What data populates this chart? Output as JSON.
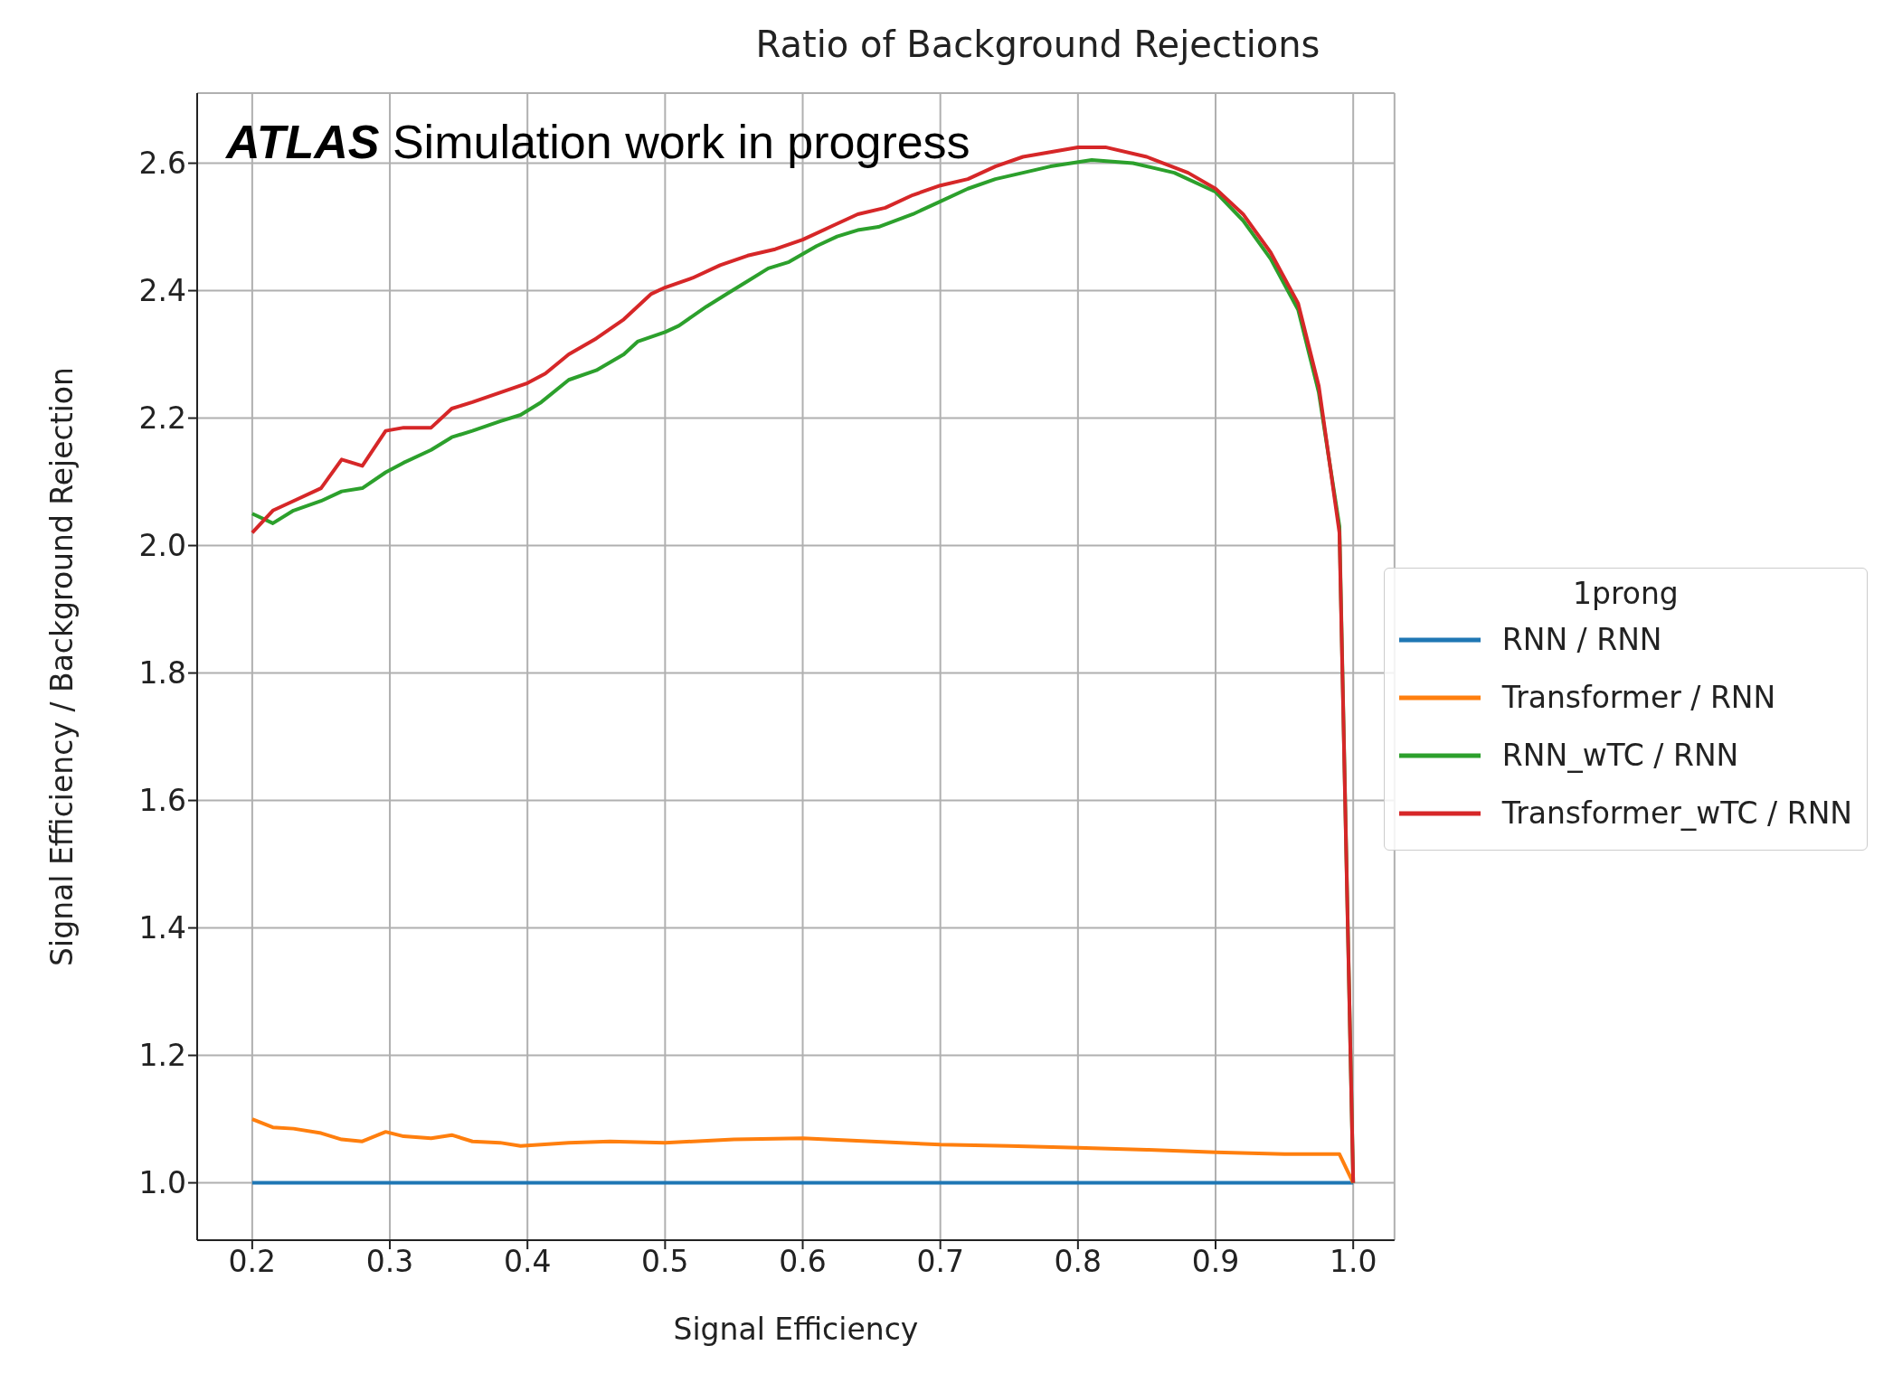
{
  "chart_data": {
    "type": "line",
    "title": "Ratio of Background Rejections",
    "xlabel": "Signal Efficiency",
    "ylabel": "Signal Efficiency / Background Rejection",
    "legend_title": "1prong",
    "annotations": [
      "ATLAS Simulation work in progress"
    ],
    "xlim": [
      0.16,
      1.03
    ],
    "xticks": [
      {
        "value": 0.2,
        "label": "0.2"
      },
      {
        "value": 0.3,
        "label": "0.3"
      },
      {
        "value": 0.4,
        "label": "0.4"
      },
      {
        "value": 0.5,
        "label": "0.5"
      },
      {
        "value": 0.6,
        "label": "0.6"
      },
      {
        "value": 0.7,
        "label": "0.7"
      },
      {
        "value": 0.8,
        "label": "0.8"
      },
      {
        "value": 0.9,
        "label": "0.9"
      },
      {
        "value": 1.0,
        "label": "1.0"
      }
    ],
    "ylim": [
      0.91,
      2.71
    ],
    "yticks": [
      {
        "value": 1.0,
        "label": "1.0"
      },
      {
        "value": 1.2,
        "label": "1.2"
      },
      {
        "value": 1.4,
        "label": "1.4"
      },
      {
        "value": 1.6,
        "label": "1.6"
      },
      {
        "value": 1.8,
        "label": "1.8"
      },
      {
        "value": 2.0,
        "label": "2.0"
      },
      {
        "value": 2.2,
        "label": "2.2"
      },
      {
        "value": 2.4,
        "label": "2.4"
      },
      {
        "value": 2.6,
        "label": "2.6"
      }
    ],
    "grid": true,
    "legend": "right",
    "line_style": "solid",
    "series": [
      {
        "name": "RNN / RNN",
        "color": "#1f77b4",
        "x": [
          0.2,
          1.0
        ],
        "values": [
          1.0,
          1.0
        ]
      },
      {
        "name": "Transformer / RNN",
        "color": "#ff7f0e",
        "x": [
          0.2,
          0.215,
          0.23,
          0.25,
          0.265,
          0.28,
          0.297,
          0.31,
          0.33,
          0.345,
          0.36,
          0.38,
          0.395,
          0.43,
          0.46,
          0.5,
          0.55,
          0.6,
          0.65,
          0.7,
          0.75,
          0.8,
          0.85,
          0.9,
          0.95,
          0.99,
          1.0
        ],
        "values": [
          1.1,
          1.087,
          1.085,
          1.078,
          1.068,
          1.065,
          1.08,
          1.073,
          1.07,
          1.075,
          1.065,
          1.063,
          1.058,
          1.063,
          1.065,
          1.063,
          1.068,
          1.07,
          1.065,
          1.06,
          1.058,
          1.055,
          1.052,
          1.048,
          1.045,
          1.045,
          1.0
        ]
      },
      {
        "name": "RNN_wTC / RNN",
        "color": "#2ca02c",
        "x": [
          0.2,
          0.215,
          0.23,
          0.25,
          0.265,
          0.28,
          0.297,
          0.31,
          0.33,
          0.345,
          0.36,
          0.38,
          0.395,
          0.41,
          0.43,
          0.45,
          0.47,
          0.48,
          0.5,
          0.51,
          0.53,
          0.545,
          0.56,
          0.575,
          0.59,
          0.61,
          0.625,
          0.64,
          0.655,
          0.68,
          0.7,
          0.72,
          0.74,
          0.78,
          0.81,
          0.84,
          0.87,
          0.9,
          0.92,
          0.94,
          0.96,
          0.975,
          0.99,
          1.0
        ],
        "values": [
          2.05,
          2.035,
          2.055,
          2.07,
          2.085,
          2.09,
          2.115,
          2.13,
          2.15,
          2.17,
          2.18,
          2.195,
          2.205,
          2.225,
          2.26,
          2.275,
          2.3,
          2.32,
          2.335,
          2.345,
          2.375,
          2.395,
          2.415,
          2.435,
          2.445,
          2.47,
          2.485,
          2.495,
          2.5,
          2.52,
          2.54,
          2.56,
          2.575,
          2.595,
          2.605,
          2.6,
          2.585,
          2.555,
          2.51,
          2.45,
          2.37,
          2.24,
          2.03,
          1.0
        ]
      },
      {
        "name": "Transformer_wTC / RNN",
        "color": "#d62728",
        "x": [
          0.2,
          0.215,
          0.23,
          0.25,
          0.265,
          0.28,
          0.297,
          0.31,
          0.33,
          0.345,
          0.36,
          0.38,
          0.4,
          0.413,
          0.43,
          0.45,
          0.47,
          0.49,
          0.5,
          0.52,
          0.54,
          0.56,
          0.58,
          0.6,
          0.62,
          0.64,
          0.66,
          0.68,
          0.7,
          0.72,
          0.74,
          0.76,
          0.8,
          0.82,
          0.85,
          0.88,
          0.9,
          0.92,
          0.94,
          0.96,
          0.975,
          0.99,
          1.0
        ],
        "values": [
          2.02,
          2.055,
          2.07,
          2.09,
          2.135,
          2.125,
          2.18,
          2.185,
          2.185,
          2.215,
          2.225,
          2.24,
          2.255,
          2.27,
          2.3,
          2.325,
          2.355,
          2.395,
          2.405,
          2.42,
          2.44,
          2.455,
          2.465,
          2.48,
          2.5,
          2.52,
          2.53,
          2.55,
          2.565,
          2.575,
          2.595,
          2.61,
          2.625,
          2.625,
          2.61,
          2.585,
          2.56,
          2.52,
          2.46,
          2.38,
          2.25,
          2.02,
          1.0
        ]
      }
    ]
  }
}
